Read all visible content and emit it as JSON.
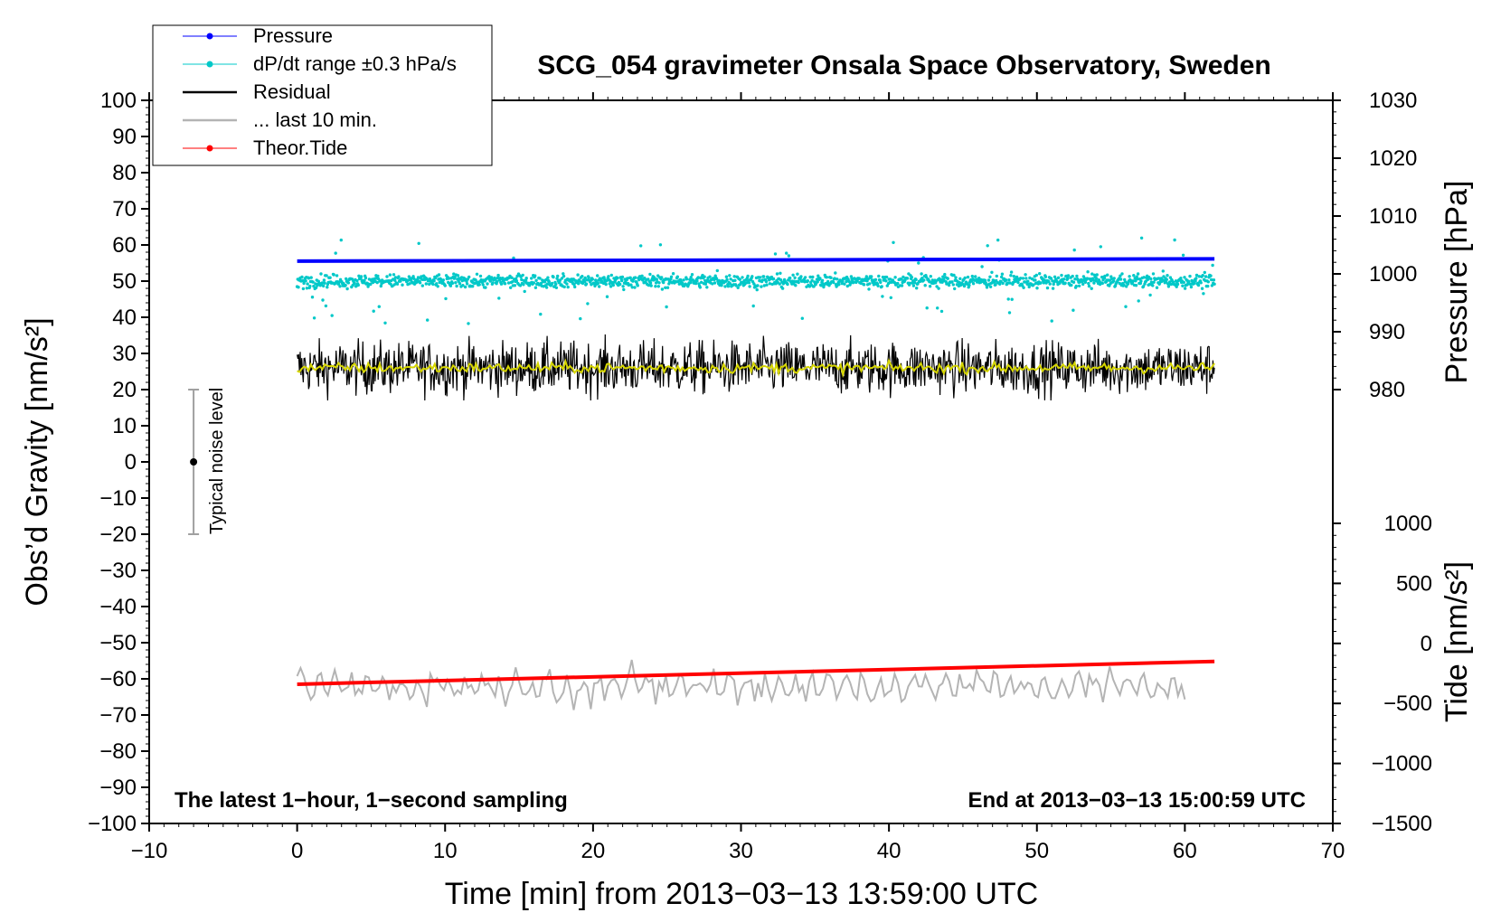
{
  "chart_data": {
    "type": "line",
    "title": "SCG_054 gravimeter Onsala Space Observatory, Sweden",
    "xlabel": "Time [min] from 2013−03−13 13:59:00 UTC",
    "ylabel": "Obs’d Gravity [nm/s²]",
    "y2label_pressure": "Pressure [hPa]",
    "y2label_tide": "Tide [nm/s²]",
    "xlim": [
      -10,
      70
    ],
    "ylim": [
      -100,
      100
    ],
    "pressure_axis_range": [
      980,
      1030
    ],
    "tide_axis_range": [
      -1500,
      1000
    ],
    "x_ticks": [
      -10,
      0,
      10,
      20,
      30,
      40,
      50,
      60,
      70
    ],
    "x_tick_labels": [
      "−10",
      "0",
      "10",
      "20",
      "30",
      "40",
      "50",
      "60",
      "70"
    ],
    "y_ticks": [
      100,
      90,
      80,
      70,
      60,
      50,
      40,
      30,
      20,
      10,
      0,
      -10,
      -20,
      -30,
      -40,
      -50,
      -60,
      -70,
      -80,
      -90,
      -100
    ],
    "y_tick_labels": [
      "100",
      "90",
      "80",
      "70",
      "60",
      "50",
      "40",
      "30",
      "20",
      "10",
      "0",
      "−10",
      "−20",
      "−30",
      "−40",
      "−50",
      "−60",
      "−70",
      "−80",
      "−90",
      "−100"
    ],
    "pressure_ticks": [
      1030,
      1020,
      1010,
      1000,
      990,
      980
    ],
    "pressure_tick_labels": [
      "1030",
      "1020",
      "1010",
      "1000",
      "990",
      "980"
    ],
    "tide_ticks": [
      1000,
      500,
      0,
      -500,
      -1000,
      -1500
    ],
    "tide_tick_labels": [
      "1000",
      "500",
      "0",
      "−500",
      "−1000",
      "−1500"
    ],
    "series": [
      {
        "name": "Pressure",
        "color": "#0000ff",
        "axis": "pressure",
        "x": [
          0,
          62
        ],
        "values": [
          1002.2,
          1002.6
        ]
      },
      {
        "name": "dP/dt range ±0.3 hPa/s",
        "color": "#00c8c8",
        "axis": "gravity",
        "x_range": [
          0,
          62
        ],
        "center": 50,
        "typical_spread": 2,
        "max_excursion": 15
      },
      {
        "name": "Residual",
        "color": "#000000",
        "axis": "gravity",
        "x_range": [
          0,
          62
        ],
        "center": 26,
        "typical_spread": 4,
        "min": 17,
        "max": 37
      },
      {
        "name": "smoothed residual",
        "color": "#d6d600",
        "axis": "gravity",
        "x_range": [
          0,
          62
        ],
        "center": 26
      },
      {
        "name": "... last 10 min.",
        "color": "#b4b4b4",
        "axis": "gravity",
        "x_range": [
          0,
          60
        ],
        "center": -62,
        "typical_spread": 4
      },
      {
        "name": "Theor.Tide",
        "color": "#ff0000",
        "axis": "tide",
        "x": [
          0,
          62
        ],
        "values": [
          -340,
          -150
        ]
      }
    ],
    "legend": {
      "position": "top-left",
      "entries": [
        {
          "label": "Pressure",
          "color": "#0000ff",
          "marker": true
        },
        {
          "label": "dP/dt range ±0.3 hPa/s",
          "color": "#00c8c8",
          "marker": true
        },
        {
          "label": "Residual",
          "color": "#000000",
          "marker": false
        },
        {
          "label": "... last 10 min.",
          "color": "#b4b4b4",
          "marker": false
        },
        {
          "label": "Theor.Tide",
          "color": "#ff0000",
          "marker": true
        }
      ]
    },
    "noise_marker": {
      "label": "Typical noise level",
      "x": -7,
      "center": 0,
      "low": -20,
      "high": 20
    },
    "annotations": {
      "bottom_left": "The latest 1−hour, 1−second sampling",
      "bottom_right": "End at 2013−03−13 15:00:59 UTC"
    }
  }
}
